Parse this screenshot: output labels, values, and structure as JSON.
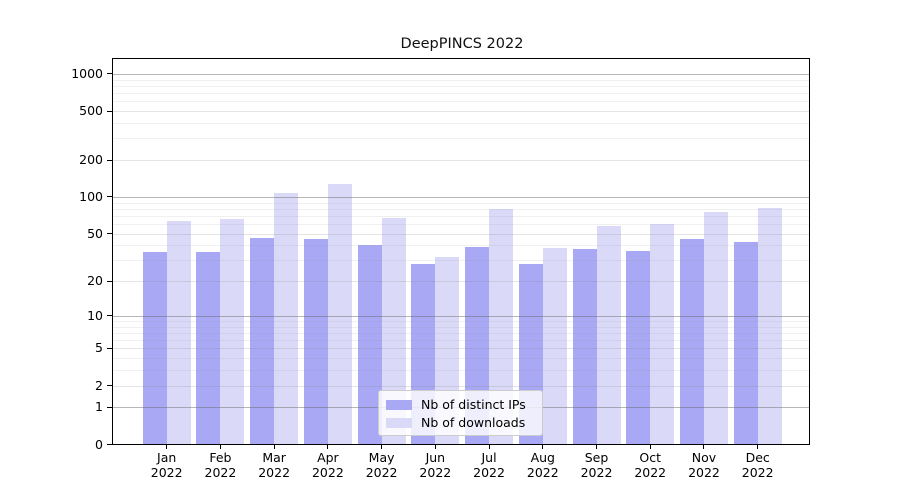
{
  "chart_data": {
    "type": "bar",
    "title": "DeepPINCS 2022",
    "categories": [
      "Jan",
      "Feb",
      "Mar",
      "Apr",
      "May",
      "Jun",
      "Jul",
      "Aug",
      "Sep",
      "Oct",
      "Nov",
      "Dec"
    ],
    "year": "2022",
    "series": [
      {
        "name": "Nb of distinct IPs",
        "color": "#a8a8f5",
        "values": [
          35,
          35,
          46,
          45,
          40,
          28,
          39,
          28,
          37,
          36,
          45,
          43
        ]
      },
      {
        "name": "Nb of downloads",
        "color": "#dadaf8",
        "values": [
          63,
          66,
          108,
          127,
          67,
          32,
          80,
          38,
          58,
          60,
          75,
          81
        ]
      }
    ],
    "xlabel": "",
    "ylabel": "",
    "y_tick_values": [
      1000,
      500,
      200,
      100,
      50,
      20,
      10,
      5,
      2,
      1,
      0
    ],
    "y_tick_labels": [
      "1000",
      "500",
      "200",
      "100",
      "50",
      "20",
      "10",
      "5",
      "2",
      "1",
      "0"
    ],
    "yscale": "symlog (position proportional to log10(value+1))",
    "ylim": [
      0,
      1350
    ],
    "grid": "both major and minor, drawn over bars",
    "legend_position": "lower center"
  }
}
